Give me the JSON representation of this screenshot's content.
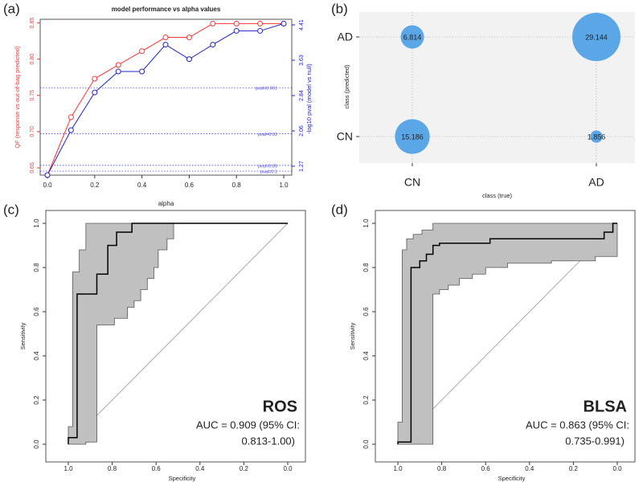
{
  "panel_labels": [
    "(a)",
    "(b)",
    "(c)",
    "(d)"
  ],
  "colors": {
    "qf": "#ff3333",
    "pval": "#2222cc",
    "threshold": "#4444ee",
    "bubble": "#5aa6e6",
    "band": "#c0c0c0",
    "curve": "#000000",
    "diagonal": "#aaaaaa",
    "grid": "#bbbbbb",
    "panel_bg": "#f2f2f2"
  },
  "chart_data": [
    {
      "type": "line",
      "panel": "(a)",
      "title": "model performance vs alpha values",
      "xlabel": "alpha",
      "ylabel_left": "QF (response vs out-of-bag predicted)",
      "ylabel_right": "-log10 pval (model vs null)",
      "xlim": [
        0,
        1
      ],
      "ylim": [
        0.64,
        0.855
      ],
      "x": [
        0.0,
        0.1,
        0.2,
        0.3,
        0.4,
        0.5,
        0.6,
        0.7,
        0.8,
        0.9,
        1.0
      ],
      "x_ticks": [
        "0.0",
        "0.2",
        "0.4",
        "0.6",
        "0.8",
        "1.0"
      ],
      "left_ticks": [
        "0.65",
        "0.70",
        "0.75",
        "0.80",
        "0.85"
      ],
      "right_ticks": [
        "1.27",
        "2.06",
        "2.84",
        "3.63",
        "4.41"
      ],
      "series": [
        {
          "values": [
            0.64,
            0.72,
            0.773,
            0.792,
            0.811,
            0.83,
            0.83,
            0.849,
            0.849,
            0.849,
            0.849
          ]
        },
        {
          "values": [
            0.64,
            0.702,
            0.754,
            0.783,
            0.783,
            0.82,
            0.8,
            0.82,
            0.839,
            0.839,
            0.849
          ]
        }
      ],
      "threshold_lines": [
        {
          "label": "pval=0.001",
          "y": 0.7605
        },
        {
          "label": "pval=0.01",
          "y": 0.697
        },
        {
          "label": "pval=0.05",
          "y": 0.6535
        },
        {
          "label": "pval=0.1",
          "y": 0.6455
        }
      ]
    },
    {
      "type": "bubble",
      "panel": "(b)",
      "xlabel": "class (true)",
      "ylabel": "class (predicted)",
      "x_categories": [
        "CN",
        "AD"
      ],
      "y_categories": [
        "CN",
        "AD"
      ],
      "cells": [
        {
          "x": "CN",
          "y": "AD",
          "value": "6.814"
        },
        {
          "x": "AD",
          "y": "AD",
          "value": "29.144"
        },
        {
          "x": "CN",
          "y": "CN",
          "value": "15.186"
        },
        {
          "x": "AD",
          "y": "CN",
          "value": "1.856"
        }
      ]
    },
    {
      "type": "line",
      "panel": "(c)",
      "xlabel": "Specificity",
      "ylabel": "Sensitivity",
      "xlim": [
        1.0,
        0.0
      ],
      "ylim": [
        0,
        1
      ],
      "x_ticks": [
        "1.0",
        "0.8",
        "0.6",
        "0.4",
        "0.2",
        "0.0"
      ],
      "y_ticks": [
        "0.0",
        "0.2",
        "0.4",
        "0.6",
        "0.8",
        "1.0"
      ],
      "dataset": "ROS",
      "auc_line1": "AUC = 0.909 (95% CI:",
      "auc_line2": "0.813-1.00)",
      "roc": [
        [
          1.0,
          0
        ],
        [
          1.0,
          0.03
        ],
        [
          0.96,
          0.03
        ],
        [
          0.96,
          0.68
        ],
        [
          0.87,
          0.68
        ],
        [
          0.87,
          0.77
        ],
        [
          0.82,
          0.77
        ],
        [
          0.82,
          0.9
        ],
        [
          0.78,
          0.9
        ],
        [
          0.78,
          0.96
        ],
        [
          0.71,
          0.96
        ],
        [
          0.71,
          1.0
        ],
        [
          0.0,
          1.0
        ]
      ],
      "band_upper": [
        [
          1.0,
          0.08
        ],
        [
          0.98,
          0.08
        ],
        [
          0.98,
          0.78
        ],
        [
          0.95,
          0.78
        ],
        [
          0.95,
          0.88
        ],
        [
          0.92,
          0.88
        ],
        [
          0.92,
          1.0
        ],
        [
          0.0,
          1.0
        ]
      ],
      "band_lower": [
        [
          1.0,
          0.0
        ],
        [
          0.92,
          0.0
        ],
        [
          0.92,
          0.01
        ],
        [
          0.87,
          0.01
        ],
        [
          0.87,
          0.54
        ],
        [
          0.79,
          0.54
        ],
        [
          0.79,
          0.57
        ],
        [
          0.73,
          0.57
        ],
        [
          0.73,
          0.62
        ],
        [
          0.7,
          0.62
        ],
        [
          0.7,
          0.65
        ],
        [
          0.67,
          0.65
        ],
        [
          0.67,
          0.7
        ],
        [
          0.64,
          0.7
        ],
        [
          0.64,
          0.75
        ],
        [
          0.61,
          0.75
        ],
        [
          0.61,
          0.8
        ],
        [
          0.59,
          0.8
        ],
        [
          0.59,
          0.88
        ],
        [
          0.55,
          0.88
        ],
        [
          0.55,
          0.93
        ],
        [
          0.52,
          0.93
        ],
        [
          0.52,
          1.0
        ],
        [
          0.0,
          1.0
        ]
      ]
    },
    {
      "type": "line",
      "panel": "(d)",
      "xlabel": "Specificity",
      "ylabel": "Sensitivity",
      "xlim": [
        1.0,
        0.0
      ],
      "ylim": [
        0,
        1
      ],
      "x_ticks": [
        "1.0",
        "0.8",
        "0.6",
        "0.4",
        "0.2",
        "0.0"
      ],
      "y_ticks": [
        "0.0",
        "0.2",
        "0.4",
        "0.6",
        "0.8",
        "1.0"
      ],
      "dataset": "BLSA",
      "auc_line1": "AUC = 0.863 (95% CI:",
      "auc_line2": "0.735-0.991)",
      "roc": [
        [
          1.0,
          0
        ],
        [
          1.0,
          0.01
        ],
        [
          0.94,
          0.01
        ],
        [
          0.94,
          0.8
        ],
        [
          0.9,
          0.8
        ],
        [
          0.9,
          0.83
        ],
        [
          0.87,
          0.83
        ],
        [
          0.87,
          0.86
        ],
        [
          0.84,
          0.86
        ],
        [
          0.84,
          0.9
        ],
        [
          0.81,
          0.9
        ],
        [
          0.81,
          0.91
        ],
        [
          0.58,
          0.91
        ],
        [
          0.58,
          0.93
        ],
        [
          0.06,
          0.93
        ],
        [
          0.06,
          0.96
        ],
        [
          0.02,
          0.96
        ],
        [
          0.02,
          1.0
        ],
        [
          0.0,
          1.0
        ]
      ],
      "band_upper": [
        [
          1.0,
          0.1
        ],
        [
          0.98,
          0.1
        ],
        [
          0.98,
          0.88
        ],
        [
          0.96,
          0.88
        ],
        [
          0.96,
          0.93
        ],
        [
          0.93,
          0.93
        ],
        [
          0.93,
          0.95
        ],
        [
          0.89,
          0.95
        ],
        [
          0.89,
          0.97
        ],
        [
          0.84,
          0.97
        ],
        [
          0.84,
          1.0
        ],
        [
          0.0,
          1.0
        ]
      ],
      "band_lower": [
        [
          1.0,
          0.0
        ],
        [
          0.84,
          0.0
        ],
        [
          0.84,
          0.68
        ],
        [
          0.81,
          0.68
        ],
        [
          0.81,
          0.7
        ],
        [
          0.77,
          0.7
        ],
        [
          0.77,
          0.72
        ],
        [
          0.72,
          0.72
        ],
        [
          0.72,
          0.75
        ],
        [
          0.66,
          0.75
        ],
        [
          0.66,
          0.77
        ],
        [
          0.6,
          0.77
        ],
        [
          0.6,
          0.8
        ],
        [
          0.5,
          0.8
        ],
        [
          0.5,
          0.82
        ],
        [
          0.3,
          0.82
        ],
        [
          0.3,
          0.83
        ],
        [
          0.1,
          0.83
        ],
        [
          0.1,
          0.85
        ],
        [
          0.0,
          0.85
        ]
      ]
    }
  ]
}
